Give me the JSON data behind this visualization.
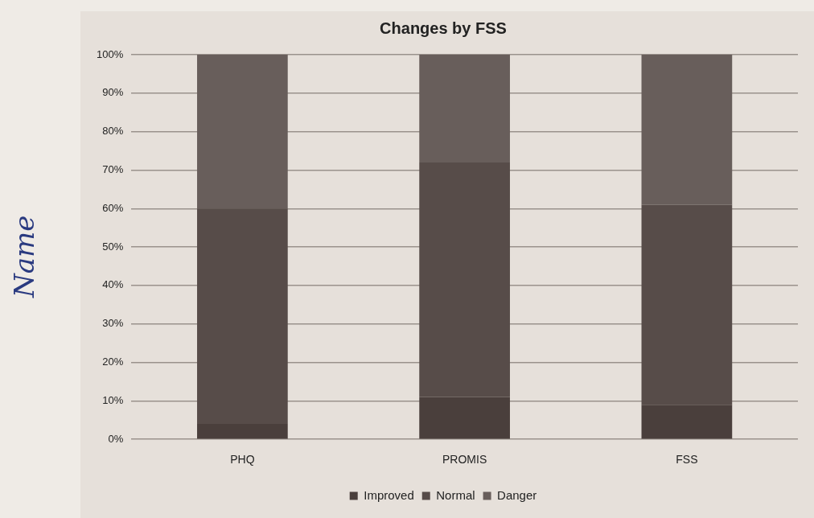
{
  "chart_data": {
    "type": "bar",
    "title": "Changes by FSS",
    "stacked": true,
    "categories": [
      "PHQ",
      "PROMIS",
      "FSS"
    ],
    "series": [
      {
        "name": "Improved",
        "color": "#4a3f3c",
        "values": [
          4,
          11,
          9
        ]
      },
      {
        "name": "Normal",
        "color": "#574c49",
        "values": [
          56,
          61,
          52
        ]
      },
      {
        "name": "Danger",
        "color": "#685e5b",
        "values": [
          40,
          28,
          39
        ]
      }
    ],
    "ylim": [
      0,
      100
    ],
    "yticks": [
      {
        "value": 0,
        "label": "0%"
      },
      {
        "value": 10,
        "label": "10%"
      },
      {
        "value": 20,
        "label": "20%"
      },
      {
        "value": 30,
        "label": "30%"
      },
      {
        "value": 40,
        "label": "40%"
      },
      {
        "value": 50,
        "label": "50%"
      },
      {
        "value": 60,
        "label": "60%"
      },
      {
        "value": 70,
        "label": "70%"
      },
      {
        "value": 80,
        "label": "80%"
      },
      {
        "value": 90,
        "label": "90%"
      },
      {
        "value": 100,
        "label": "100%"
      }
    ],
    "grid": "y",
    "legend": "bottom",
    "annotations": [
      "Name"
    ]
  }
}
